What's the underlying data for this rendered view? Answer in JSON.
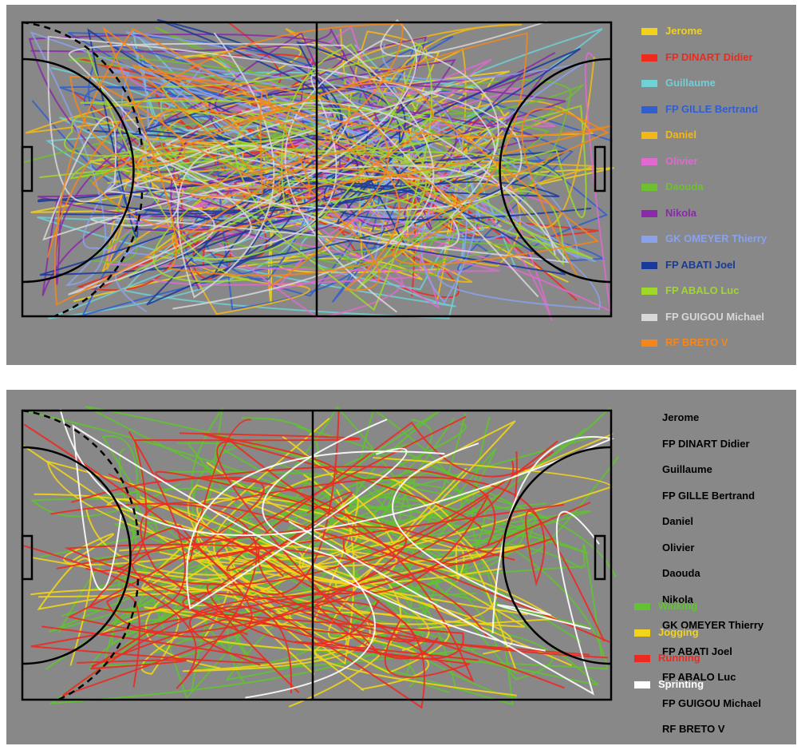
{
  "chart_data": [
    {
      "type": "scatter",
      "title": "",
      "xlabel": "",
      "ylabel": "",
      "description_series_by": "player",
      "series": [
        {
          "name": "Jerome",
          "color": "#f2d21a"
        },
        {
          "name": "FP DINART Didier",
          "color": "#ee2a1c"
        },
        {
          "name": "Guillaume",
          "color": "#6fd0d6"
        },
        {
          "name": "FP GILLE Bertrand",
          "color": "#2f5fd0"
        },
        {
          "name": "Daniel",
          "color": "#f3b818"
        },
        {
          "name": "Olivier",
          "color": "#e06ad0"
        },
        {
          "name": "Daouda",
          "color": "#6fc030"
        },
        {
          "name": "Nikola",
          "color": "#8a2aa8"
        },
        {
          "name": "GK OMEYER Thierry",
          "color": "#8aa2ec"
        },
        {
          "name": "FP ABATI Joel",
          "color": "#1a3a9a"
        },
        {
          "name": "FP ABALO Luc",
          "color": "#a0d82a"
        },
        {
          "name": "FP GUIGOU Michael",
          "color": "#d8d8d8"
        },
        {
          "name": "RF BRETO V",
          "color": "#f5861a"
        }
      ]
    },
    {
      "type": "scatter",
      "title": "",
      "xlabel": "",
      "ylabel": "",
      "players": [
        "Jerome",
        "FP DINART Didier",
        "Guillaume",
        "FP GILLE Bertrand",
        "Daniel",
        "Olivier",
        "Daouda",
        "Nikola",
        "GK OMEYER Thierry",
        "FP ABATI Joel",
        "FP ABALO Luc",
        "FP GUIGOU Michael",
        "RF BRETO V"
      ],
      "series": [
        {
          "name": "Walking",
          "color": "#62c232"
        },
        {
          "name": "Jogging",
          "color": "#f2d41a"
        },
        {
          "name": "Running",
          "color": "#ec2a22"
        },
        {
          "name": "Sprinting",
          "color": "#ffffff"
        }
      ]
    }
  ],
  "court": {
    "background": "#888888",
    "line_color": "#000000"
  }
}
